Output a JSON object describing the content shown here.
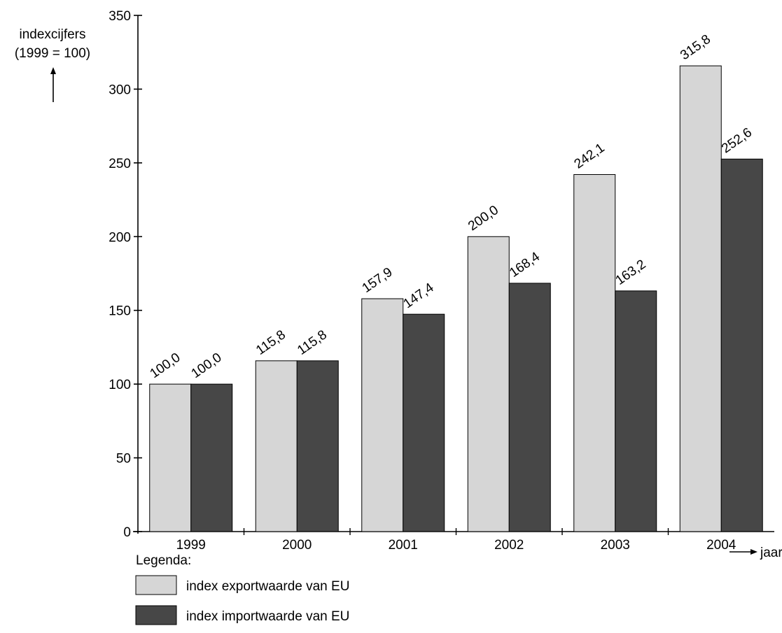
{
  "y_label_line1": "indexcijfers",
  "y_label_line2": "(1999 = 100)",
  "x_label": "jaar",
  "legend_title": "Legenda:",
  "legend_items": [
    "index exportwaarde van EU",
    "index importwaarde van EU"
  ],
  "colors": {
    "export": "#d6d6d6",
    "import": "#474747"
  },
  "chart_data": {
    "type": "bar",
    "categories": [
      "1999",
      "2000",
      "2001",
      "2002",
      "2003",
      "2004"
    ],
    "series": [
      {
        "name": "index exportwaarde van EU",
        "values": [
          100.0,
          115.8,
          157.9,
          200.0,
          242.1,
          315.8
        ],
        "labels": [
          "100,0",
          "115,8",
          "157,9",
          "200,0",
          "242,1",
          "315,8"
        ]
      },
      {
        "name": "index importwaarde van EU",
        "values": [
          100.0,
          115.8,
          147.4,
          168.4,
          163.2,
          252.6
        ],
        "labels": [
          "100,0",
          "115,8",
          "147,4",
          "168,4",
          "163,2",
          "252,6"
        ]
      }
    ],
    "ylim": [
      0,
      350
    ],
    "yticks": [
      0,
      50,
      100,
      150,
      200,
      250,
      300,
      350
    ],
    "grid": false,
    "legend_position": "bottom-left"
  }
}
